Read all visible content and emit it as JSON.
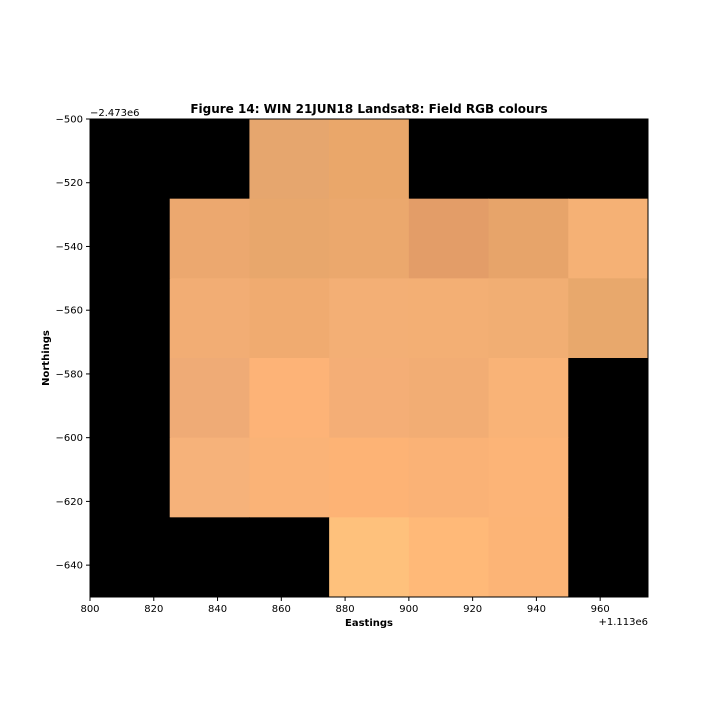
{
  "chart_data": {
    "type": "heatmap",
    "title": "Figure 14: WIN 21JUN18  Landsat8: Field RGB colours",
    "xlabel": "Eastings",
    "ylabel": "Northings",
    "x_offset_label": "+1.113e6",
    "y_offset_label": "−2.473e6",
    "xlim": [
      800,
      975
    ],
    "ylim": [
      -650,
      -500
    ],
    "x_ticks": [
      800,
      820,
      840,
      860,
      880,
      900,
      920,
      940,
      960
    ],
    "x_tick_labels": [
      "800",
      "820",
      "840",
      "860",
      "880",
      "900",
      "920",
      "940",
      "960"
    ],
    "y_ticks": [
      -500,
      -520,
      -540,
      -560,
      -580,
      -600,
      -620,
      -640
    ],
    "y_tick_labels": [
      "−500",
      "−520",
      "−540",
      "−560",
      "−580",
      "−600",
      "−620",
      "−640"
    ],
    "grid": false,
    "column_edges": [
      800,
      825,
      850,
      875,
      900,
      925,
      950,
      975
    ],
    "row_edges": [
      -500,
      -525,
      -550,
      -575,
      -600,
      -625,
      -650
    ],
    "background_color": "#000000",
    "cells": [
      [
        "#000000",
        "#000000",
        "#e6a66e",
        "#eaa76a",
        "#000000",
        "#000000",
        "#000000"
      ],
      [
        "#000000",
        "#eca86f",
        "#e8a76c",
        "#eba86d",
        "#e39d68",
        "#e7a46a",
        "#f5b175"
      ],
      [
        "#000000",
        "#f2ad74",
        "#f0ab70",
        "#f3af75",
        "#f3af74",
        "#f1ae73",
        "#e8a86c"
      ],
      [
        "#000000",
        "#efab76",
        "#fdb377",
        "#f4ae76",
        "#f2ad74",
        "#f9b377",
        "#000000"
      ],
      [
        "#000000",
        "#f6b27a",
        "#fab377",
        "#fdb375",
        "#fab276",
        "#fcb477",
        "#000000"
      ],
      [
        "#000000",
        "#000000",
        "#000000",
        "#fec17c",
        "#ffb978",
        "#fcb476",
        "#000000"
      ]
    ]
  }
}
